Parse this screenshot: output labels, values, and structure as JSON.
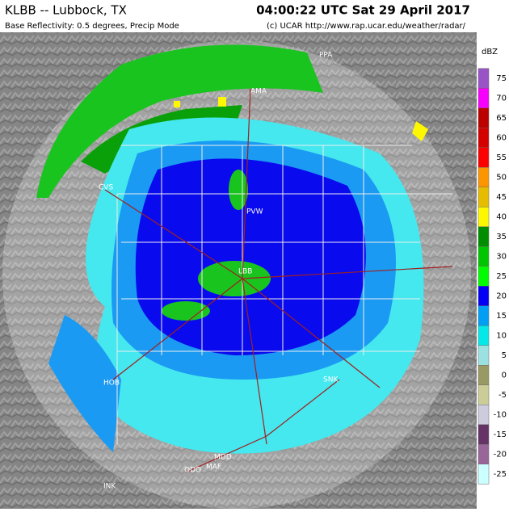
{
  "header": {
    "title": "KLBB -- Lubbock, TX",
    "timestamp": "04:00:22 UTC Sat 29 April 2017",
    "subtitle": "Base Reflectivity: 0.5 degrees, Precip Mode",
    "credit": "(c) UCAR  http://www.rap.ucar.edu/weather/radar/"
  },
  "legend": {
    "title": "dBZ",
    "levels": [
      {
        "value": 75,
        "color": "#9854c6"
      },
      {
        "value": 70,
        "color": "#f800fd"
      },
      {
        "value": 65,
        "color": "#bc0000"
      },
      {
        "value": 60,
        "color": "#d40000"
      },
      {
        "value": 55,
        "color": "#fd0000"
      },
      {
        "value": 50,
        "color": "#fd9500"
      },
      {
        "value": 45,
        "color": "#e5bc00"
      },
      {
        "value": 40,
        "color": "#fdf802"
      },
      {
        "value": 35,
        "color": "#008e00"
      },
      {
        "value": 30,
        "color": "#01c501"
      },
      {
        "value": 25,
        "color": "#02fd02"
      },
      {
        "value": 20,
        "color": "#0300f4"
      },
      {
        "value": 15,
        "color": "#019ff4"
      },
      {
        "value": 10,
        "color": "#04e9e7"
      },
      {
        "value": 5,
        "color": "#9ce1e1"
      },
      {
        "value": 0,
        "color": "#999966"
      },
      {
        "value": -5,
        "color": "#cccc99"
      },
      {
        "value": -10,
        "color": "#ccccdd"
      },
      {
        "value": -15,
        "color": "#663366"
      },
      {
        "value": -20,
        "color": "#996699"
      },
      {
        "value": -25,
        "color": "#ccffff"
      }
    ]
  },
  "stations": [
    "PPA",
    "AMA",
    "CVS",
    "PVW",
    "LBB",
    "HOB",
    "SNK",
    "MAF",
    "MDD",
    "ODO",
    "INK"
  ]
}
